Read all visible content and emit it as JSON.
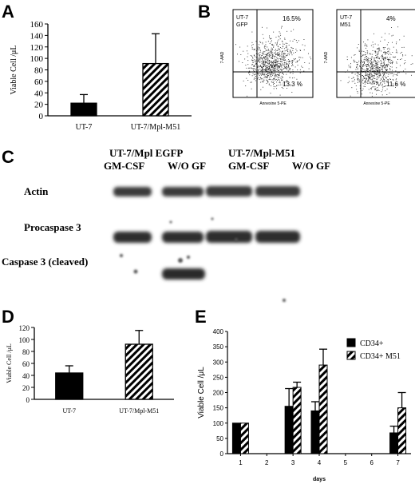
{
  "panels": {
    "A": {
      "letter": "A",
      "chart_data": {
        "type": "bar",
        "categories": [
          "UT-7",
          "UT-7/Mpl-M51"
        ],
        "values": [
          22,
          91
        ],
        "errors": [
          15,
          52
        ],
        "patterns": [
          "solid",
          "hatched"
        ],
        "ylabel": "Viable Cell /μL",
        "ylim": [
          0,
          160
        ],
        "yticks": [
          "0",
          "20",
          "40",
          "60",
          "80",
          "100",
          "120",
          "140",
          "160"
        ]
      }
    },
    "B": {
      "letter": "B",
      "plots": [
        {
          "name": "UT-7\nGFP",
          "name_line1": "UT-7",
          "name_line2": "GFP",
          "upper_right": "16.5%",
          "lower_right": "13.3 %",
          "xlabel": "Annexine 5-PE",
          "ylabel": "7-AAD"
        },
        {
          "name_line1": "UT-7",
          "name_line2": "M51",
          "upper_right": "4%",
          "lower_right": "11.6 %",
          "xlabel": "Annexine 5-PE",
          "ylabel": "7-AAD"
        }
      ]
    },
    "C": {
      "letter": "C",
      "group_labels": [
        "UT-7/Mpl EGFP",
        "UT-7/Mpl-M51"
      ],
      "lane_labels": [
        "GM-CSF",
        "W/O GF",
        "GM-CSF",
        "W/O GF"
      ],
      "row_labels": [
        "Actin",
        "Procaspase 3",
        "Caspase 3 (cleaved)"
      ]
    },
    "D": {
      "letter": "D",
      "chart_data": {
        "type": "bar",
        "categories": [
          "UT-7",
          "UT-7/Mpl-M51"
        ],
        "values": [
          44,
          92
        ],
        "errors": [
          12,
          23
        ],
        "patterns": [
          "solid",
          "hatched"
        ],
        "ylabel": "Viable Cell /μL",
        "ylim": [
          0,
          120
        ],
        "yticks": [
          "0",
          "20",
          "40",
          "60",
          "80",
          "100",
          "120"
        ]
      }
    },
    "E": {
      "letter": "E",
      "chart_data": {
        "type": "bar",
        "categories": [
          "1",
          "2",
          "3",
          "4",
          "5",
          "6",
          "7"
        ],
        "series": [
          {
            "name": "CD34+",
            "pattern": "solid",
            "values": [
              100,
              null,
              155,
              140,
              null,
              null,
              68
            ],
            "errors": [
              0,
              null,
              58,
              30,
              null,
              null,
              22
            ]
          },
          {
            "name": "CD34+ M51",
            "pattern": "hatched",
            "values": [
              100,
              null,
              217,
              290,
              null,
              null,
              150
            ],
            "errors": [
              0,
              null,
              17,
              52,
              null,
              null,
              50
            ]
          }
        ],
        "xlabel": "days",
        "ylabel": "Viable Cell /μL",
        "ylim": [
          0,
          400
        ],
        "yticks": [
          "0",
          "50",
          "100",
          "150",
          "200",
          "250",
          "300",
          "350",
          "400"
        ]
      }
    }
  }
}
